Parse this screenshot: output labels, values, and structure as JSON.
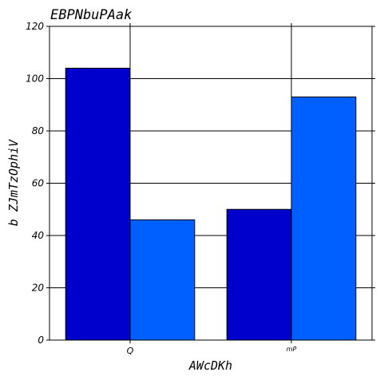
{
  "chart_data": {
    "type": "bar",
    "title": "EBPNbuPAak",
    "xlabel": "AWcDKh",
    "ylabel": "b ZJmTzOphiV",
    "categories": [
      "Q",
      "mP"
    ],
    "series": [
      {
        "values": [
          104,
          50
        ],
        "color": "#0000cc"
      },
      {
        "values": [
          46,
          93
        ],
        "color": "#0060ff"
      }
    ],
    "ylim": [
      0,
      120
    ],
    "yticks": [
      0,
      20,
      40,
      60,
      80,
      100,
      120
    ],
    "grid": true
  }
}
